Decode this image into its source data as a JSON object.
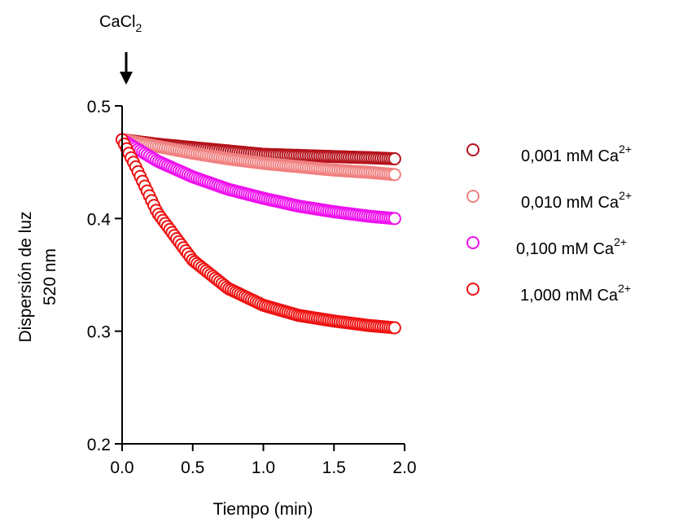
{
  "chart_data": {
    "type": "scatter",
    "title": "",
    "xlabel": "Tiempo (min)",
    "ylabel_lines": [
      "Dispersión de luz",
      "520 nm"
    ],
    "xlim": [
      0.0,
      2.0
    ],
    "ylim": [
      0.2,
      0.5
    ],
    "x_ticks": [
      "0.0",
      "0.5",
      "1.0",
      "1.5",
      "2.0"
    ],
    "y_ticks": [
      "0.2",
      "0.3",
      "0.4",
      "0.5"
    ],
    "grid": false,
    "legend_position": "right",
    "annotation": {
      "text": "CaCl",
      "subscript": "2",
      "x": 0.0
    },
    "marker": "open-circle",
    "x_range": [
      0.0,
      1.93
    ],
    "series": [
      {
        "name": "0,001 mM Ca",
        "sup": "2+",
        "color": "#b5121b",
        "x": [
          0.0,
          0.25,
          0.5,
          0.75,
          1.0,
          1.25,
          1.5,
          1.75,
          1.93
        ],
        "y": [
          0.47,
          0.466,
          0.463,
          0.46,
          0.457,
          0.456,
          0.455,
          0.454,
          0.453
        ]
      },
      {
        "name": "0,010 mM Ca",
        "sup": "2+",
        "color": "#f08080",
        "x": [
          0.0,
          0.25,
          0.5,
          0.75,
          1.0,
          1.25,
          1.5,
          1.75,
          1.93
        ],
        "y": [
          0.47,
          0.464,
          0.458,
          0.453,
          0.449,
          0.446,
          0.443,
          0.441,
          0.439
        ]
      },
      {
        "name": "0,100 mM Ca",
        "sup": "2+",
        "color": "#ee11ee",
        "x": [
          0.0,
          0.25,
          0.5,
          0.75,
          1.0,
          1.25,
          1.5,
          1.75,
          1.93
        ],
        "y": [
          0.47,
          0.451,
          0.437,
          0.426,
          0.418,
          0.411,
          0.406,
          0.402,
          0.4
        ]
      },
      {
        "name": "1,000 mM Ca",
        "sup": "2+",
        "color": "#ee1111",
        "x": [
          0.0,
          0.1,
          0.25,
          0.5,
          0.75,
          1.0,
          1.25,
          1.5,
          1.75,
          1.93
        ],
        "y": [
          0.47,
          0.445,
          0.405,
          0.363,
          0.338,
          0.323,
          0.314,
          0.309,
          0.305,
          0.303
        ]
      }
    ]
  }
}
